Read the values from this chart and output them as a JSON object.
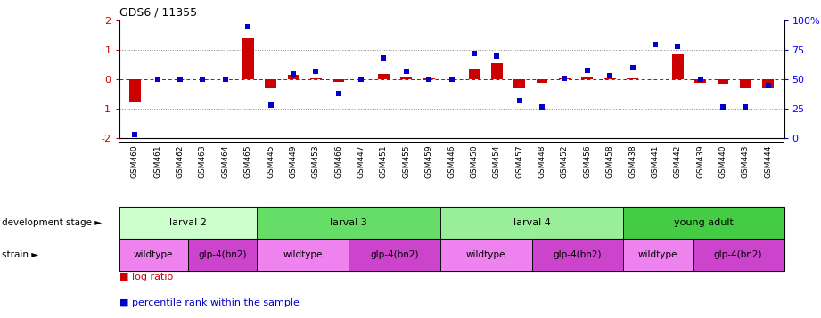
{
  "title": "GDS6 / 11355",
  "samples": [
    "GSM460",
    "GSM461",
    "GSM462",
    "GSM463",
    "GSM464",
    "GSM465",
    "GSM445",
    "GSM449",
    "GSM453",
    "GSM466",
    "GSM447",
    "GSM451",
    "GSM455",
    "GSM459",
    "GSM446",
    "GSM450",
    "GSM454",
    "GSM457",
    "GSM448",
    "GSM452",
    "GSM456",
    "GSM458",
    "GSM438",
    "GSM441",
    "GSM442",
    "GSM439",
    "GSM440",
    "GSM443",
    "GSM444"
  ],
  "log_ratio": [
    -0.75,
    0.0,
    0.0,
    0.0,
    0.0,
    1.4,
    -0.3,
    0.15,
    0.05,
    -0.07,
    0.0,
    0.2,
    0.08,
    0.05,
    0.0,
    0.35,
    0.55,
    -0.3,
    -0.1,
    0.05,
    0.06,
    0.05,
    0.05,
    0.0,
    0.85,
    -0.1,
    -0.15,
    -0.3,
    -0.3
  ],
  "percentile": [
    3,
    50,
    50,
    50,
    50,
    95,
    28,
    55,
    57,
    38,
    50,
    68,
    57,
    50,
    50,
    72,
    70,
    32,
    27,
    51,
    58,
    53,
    60,
    80,
    78,
    50,
    27,
    27,
    45
  ],
  "development_stages": [
    {
      "label": "larval 2",
      "start": 0,
      "end": 5,
      "color": "#ccffcc"
    },
    {
      "label": "larval 3",
      "start": 6,
      "end": 13,
      "color": "#66dd66"
    },
    {
      "label": "larval 4",
      "start": 14,
      "end": 21,
      "color": "#99ee99"
    },
    {
      "label": "young adult",
      "start": 22,
      "end": 28,
      "color": "#44cc44"
    }
  ],
  "strains": [
    {
      "label": "wildtype",
      "start": 0,
      "end": 2,
      "color": "#ee82ee"
    },
    {
      "label": "glp-4(bn2)",
      "start": 3,
      "end": 5,
      "color": "#cc44cc"
    },
    {
      "label": "wildtype",
      "start": 6,
      "end": 9,
      "color": "#ee82ee"
    },
    {
      "label": "glp-4(bn2)",
      "start": 10,
      "end": 13,
      "color": "#cc44cc"
    },
    {
      "label": "wildtype",
      "start": 14,
      "end": 17,
      "color": "#ee82ee"
    },
    {
      "label": "glp-4(bn2)",
      "start": 18,
      "end": 21,
      "color": "#cc44cc"
    },
    {
      "label": "wildtype",
      "start": 22,
      "end": 24,
      "color": "#ee82ee"
    },
    {
      "label": "glp-4(bn2)",
      "start": 25,
      "end": 28,
      "color": "#cc44cc"
    }
  ],
  "ylim": [
    -2,
    2
  ],
  "bar_color": "#cc0000",
  "dot_color": "#0000cc",
  "hline_color": "#cc0000",
  "dotted_color": "#888888",
  "left_yticks": [
    -2,
    -1,
    0,
    1,
    2
  ],
  "right_ytick_labels": [
    "0",
    "25",
    "50",
    "75",
    "100%"
  ]
}
